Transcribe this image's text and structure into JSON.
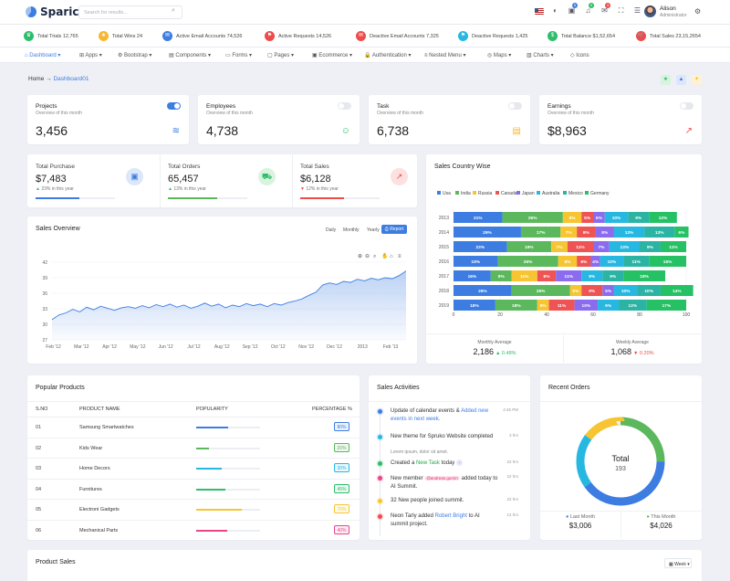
{
  "brand": {
    "name": "Sparic"
  },
  "header": {
    "search_placeholder": "Search for results...",
    "badges": {
      "cart": "5",
      "notifications": "5",
      "messages": "4"
    },
    "user": {
      "name": "Alison",
      "role": "Administrator"
    }
  },
  "stats_bar": [
    {
      "label": "Total Trials 12,765",
      "icon": "trophy-icon",
      "color": "#2ebd6b"
    },
    {
      "label": "Total Wins 24",
      "icon": "star-icon",
      "color": "#f7b731"
    },
    {
      "label": "Active Email Accounts 74,526",
      "icon": "email-icon",
      "color": "#3d7de1"
    },
    {
      "label": "Active Requests 14,526",
      "icon": "request-icon",
      "color": "#ef4b4b"
    },
    {
      "label": "Deactive Email Accounts 7,325",
      "icon": "email-off-icon",
      "color": "#ef4b4b"
    },
    {
      "label": "Deactive Requests 1,425",
      "icon": "request-off-icon",
      "color": "#27b8e2"
    },
    {
      "label": "Total Balance $1,52,654",
      "icon": "dollar-icon",
      "color": "#2ebd6b"
    },
    {
      "label": "Total Sales 23,15,2654",
      "icon": "cart-icon",
      "color": "#ef4b4b"
    }
  ],
  "nav": [
    "Dashboard",
    "Apps",
    "Bootstrap",
    "Components",
    "Forms",
    "Pages",
    "Ecommerce",
    "Authentication",
    "Nested Menu",
    "Maps",
    "Charts",
    "Icons"
  ],
  "breadcrumb": {
    "home": "Home",
    "current": "Dashboard01"
  },
  "kpis": [
    {
      "title": "Projects",
      "subtitle": "Overview of this month",
      "value": "3,456",
      "toggle_on": true,
      "icon": "layers-icon"
    },
    {
      "title": "Employees",
      "subtitle": "Overview of this month",
      "value": "4,738",
      "toggle_on": false,
      "icon": "users-icon"
    },
    {
      "title": "Task",
      "subtitle": "Overview of this month",
      "value": "6,738",
      "toggle_on": false,
      "icon": "document-icon"
    },
    {
      "title": "Earnings",
      "subtitle": "Overview of this month",
      "value": "$8,963",
      "toggle_on": false,
      "icon": "external-link-icon"
    }
  ],
  "summary": [
    {
      "title": "Total Purchase",
      "value": "$7,483",
      "change": "23% in this year",
      "trend": "up",
      "progress": 0.55,
      "color": "#3d7de1",
      "icon": "bag-icon"
    },
    {
      "title": "Total Orders",
      "value": "65,457",
      "change": "13% in this year",
      "trend": "up",
      "progress": 0.62,
      "color": "#5cb85c",
      "icon": "truck-icon"
    },
    {
      "title": "Total Sales",
      "value": "$6,128",
      "change": "12% in this year",
      "trend": "down",
      "progress": 0.55,
      "color": "#ef4b4b",
      "icon": "trend-icon"
    }
  ],
  "sales_overview": {
    "title": "Sales Overview",
    "ranges": [
      "Daily",
      "Monthly",
      "Yearly"
    ],
    "report_label": "Report"
  },
  "country_footer": {
    "monthly": {
      "label": "Monthly Average",
      "value": "2,186",
      "change": "0.48%"
    },
    "weekly": {
      "label": "Weekly Average",
      "value": "1,068",
      "change": "0.20%"
    }
  },
  "chart_data": [
    {
      "type": "area",
      "title": "Sales Overview",
      "ylim": [
        27,
        42
      ],
      "yticks": [
        27,
        30,
        33,
        36,
        39,
        42
      ],
      "x_ticks": [
        "Feb '12",
        "Mar '12",
        "Apr '12",
        "May '12",
        "Jun '12",
        "Jul '12",
        "Aug '12",
        "Sep '12",
        "Oct '12",
        "Nov '12",
        "Dec '12",
        "2013",
        "Feb '13"
      ],
      "values": [
        30.9,
        31.8,
        32.2,
        32.9,
        32.4,
        33.3,
        32.8,
        33.5,
        33.1,
        32.7,
        33.2,
        33.4,
        33.1,
        33.6,
        33.2,
        33.8,
        33.4,
        33.9,
        33.3,
        33.7,
        33.1,
        33.5,
        34.1,
        33.5,
        33.9,
        33.2,
        33.7,
        33.4,
        34.0,
        33.6,
        33.9,
        33.4,
        34.0,
        33.7,
        34.2,
        34.5,
        34.9,
        35.6,
        36.2,
        37.6,
        38.0,
        37.7,
        38.3,
        38.1,
        38.7,
        38.4,
        38.9,
        38.6,
        39.0,
        38.8,
        39.4,
        40.3
      ],
      "color": "#3d7de1"
    },
    {
      "type": "bar",
      "stacked": true,
      "orientation": "horizontal",
      "title": "Sales Country Wise",
      "categories": [
        "2013",
        "2014",
        "2015",
        "2016",
        "2017",
        "2018",
        "2019"
      ],
      "xlim": [
        0,
        100
      ],
      "xticks": [
        0,
        20,
        40,
        60,
        80,
        100
      ],
      "series": [
        {
          "name": "Usa",
          "color": "#3d7de1",
          "values": [
            21,
            29,
            23,
            19,
            16,
            25,
            18
          ]
        },
        {
          "name": "India",
          "color": "#5cb85c",
          "values": [
            26,
            17,
            19,
            26,
            9,
            25,
            18
          ]
        },
        {
          "name": "Russia",
          "color": "#f7c531",
          "values": [
            8,
            7,
            7,
            8,
            11,
            5,
            5
          ]
        },
        {
          "name": "Canada",
          "color": "#ef5454",
          "values": [
            5,
            8,
            11,
            6,
            8,
            9,
            11
          ]
        },
        {
          "name": "Japan",
          "color": "#8b6cef",
          "values": [
            5,
            8,
            7,
            4,
            11,
            5,
            10
          ]
        },
        {
          "name": "Australia",
          "color": "#27b8e2",
          "values": [
            10,
            13,
            13,
            10,
            9,
            10,
            9
          ]
        },
        {
          "name": "Mexico",
          "color": "#2bb3a3",
          "values": [
            9,
            13,
            9,
            11,
            9,
            10,
            12
          ]
        },
        {
          "name": "Germany",
          "color": "#26c164",
          "values": [
            12,
            6,
            11,
            16,
            18,
            14,
            17
          ]
        }
      ]
    },
    {
      "type": "pie",
      "title": "Recent Orders",
      "center_label": "Total",
      "center_value": "193",
      "segments": [
        {
          "label": "Last Month",
          "value": 0.4,
          "color": "#3d7de1",
          "amount": "$3,006"
        },
        {
          "label": "Sky",
          "value": 0.2,
          "color": "#27b8e2"
        },
        {
          "label": "Yellow",
          "value": 0.15,
          "color": "#f7c531"
        },
        {
          "label": "This Month",
          "value": 0.25,
          "color": "#5cb85c",
          "amount": "$4,026"
        }
      ]
    }
  ],
  "popular_products": {
    "title": "Popular Products",
    "headers": [
      "S.NO",
      "PRODUCT NAME",
      "POPULARITY",
      "PERCENTAGE %"
    ],
    "rows": [
      {
        "sno": "01",
        "name": "Samsung Smartwatches",
        "pct": "80%",
        "fill": 0.5,
        "color": "#3d7de1"
      },
      {
        "sno": "02",
        "name": "Kids Wear",
        "pct": "20%",
        "fill": 0.2,
        "color": "#5cb85c"
      },
      {
        "sno": "03",
        "name": "Home Decors",
        "pct": "30%",
        "fill": 0.4,
        "color": "#27b8e2"
      },
      {
        "sno": "04",
        "name": "Furnitures",
        "pct": "45%",
        "fill": 0.46,
        "color": "#2ebd6b"
      },
      {
        "sno": "05",
        "name": "Electroni Gadgets",
        "pct": "70%",
        "fill": 0.72,
        "color": "#f7c531"
      },
      {
        "sno": "06",
        "name": "Mechanical Parts",
        "pct": "40%",
        "fill": 0.48,
        "color": "#e8458b"
      }
    ]
  },
  "sales_activities": {
    "title": "Sales Activities",
    "items": [
      {
        "pre": "Update of calendar events & ",
        "link": "Added new events in next week.",
        "time": "4:45 PM",
        "color": "#3d7de1"
      },
      {
        "text": "New theme for Spruko Website completed",
        "sub": "Lorem ipsum, dolor sit amet.",
        "time": "3 hrs",
        "color": "#27b8e2"
      },
      {
        "pre": "Created a ",
        "link": "New Task",
        "post": " today",
        "time": "22 hrs",
        "color": "#2ebd6b"
      },
      {
        "pre": "New member ",
        "chip": "@andreas.gurnin",
        "post": " added today to AI Summit.",
        "time": "22 hrs",
        "color": "#e8458b"
      },
      {
        "text": "32 New people joined summit.",
        "time": "22 hrs",
        "color": "#f7c531"
      },
      {
        "pre": "Neon Tarly added ",
        "link": "Robert Bright",
        "post": " to AI summit project.",
        "time": "12 hrs",
        "color": "#ef4b4b"
      }
    ]
  },
  "recent_orders": {
    "title": "Recent Orders"
  },
  "product_sales": {
    "title": "Product Sales",
    "period": "Week"
  }
}
